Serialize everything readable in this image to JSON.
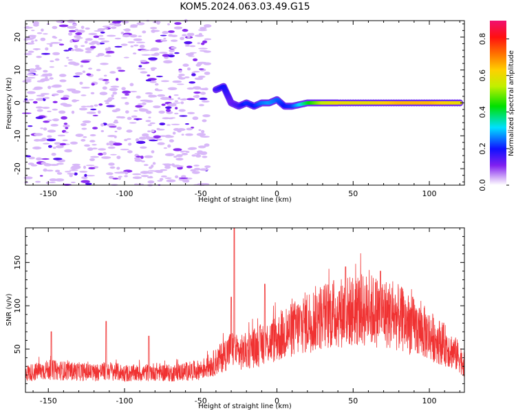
{
  "page": {
    "title": "KOM5.2024.063.03.49.G15"
  },
  "colors": {
    "snr_line": "#f03232",
    "axis": "#000000",
    "background": "#ffffff"
  },
  "chart_data": [
    {
      "type": "heatmap",
      "title": "KOM5.2024.063.03.49.G15",
      "xlabel": "Height of straight line (km)",
      "ylabel": "Frequency (Hz)",
      "xlim": [
        -165,
        123
      ],
      "ylim": [
        -25,
        25
      ],
      "x_ticks": [
        -150,
        -100,
        -50,
        0,
        50,
        100
      ],
      "y_ticks": [
        -20,
        -10,
        0,
        10,
        20
      ],
      "colorbar": {
        "label": "Normalized spectral amplitude",
        "range": [
          0,
          0.9
        ],
        "ticks": [
          0.0,
          0.2,
          0.4,
          0.6,
          0.8
        ],
        "colormap": "rainbow (lavender-violet-blue-cyan-green-yellow-orange-red-magenta)"
      },
      "signal_track": {
        "description": "Coherent signal line near 0 Hz from about -27 km to 123 km; noise scattered over full band below -45 km",
        "x": [
          -40,
          -35,
          -30,
          -25,
          -20,
          -15,
          -10,
          -5,
          0,
          5,
          10,
          20,
          30,
          40,
          60,
          80,
          100,
          120
        ],
        "frequency_hz": [
          4,
          5,
          0,
          -1,
          0,
          -1,
          0,
          0,
          1,
          -1,
          -1,
          0,
          0,
          0,
          0,
          0,
          0,
          0
        ],
        "amplitude": [
          0.15,
          0.2,
          0.12,
          0.15,
          0.22,
          0.2,
          0.25,
          0.28,
          0.25,
          0.2,
          0.22,
          0.4,
          0.55,
          0.6,
          0.6,
          0.65,
          0.65,
          0.6
        ]
      }
    },
    {
      "type": "line",
      "xlabel": "Height of straight line (km)",
      "ylabel": "SNR (v/v)",
      "xlim": [
        -165,
        123
      ],
      "ylim": [
        0,
        190
      ],
      "x_ticks": [
        -150,
        -100,
        -50,
        0,
        50,
        100
      ],
      "y_ticks": [
        50,
        100,
        150
      ],
      "series": [
        {
          "color": "#f03232",
          "x": [
            -165,
            -150,
            -140,
            -130,
            -120,
            -110,
            -100,
            -90,
            -80,
            -70,
            -60,
            -50,
            -40,
            -30,
            -25,
            -20,
            -10,
            0,
            10,
            20,
            30,
            40,
            50,
            60,
            70,
            80,
            90,
            100,
            110,
            120,
            123
          ],
          "values": [
            22,
            26,
            25,
            24,
            23,
            25,
            22,
            22,
            24,
            22,
            24,
            26,
            35,
            50,
            45,
            48,
            55,
            62,
            72,
            82,
            88,
            92,
            94,
            95,
            92,
            86,
            76,
            66,
            55,
            40,
            32
          ],
          "spikes": [
            [
              -148,
              70
            ],
            [
              -112,
              82
            ],
            [
              -84,
              65
            ],
            [
              -28,
              190
            ],
            [
              -30,
              110
            ],
            [
              -8,
              125
            ],
            [
              45,
              145
            ],
            [
              68,
              140
            ]
          ]
        }
      ]
    }
  ]
}
